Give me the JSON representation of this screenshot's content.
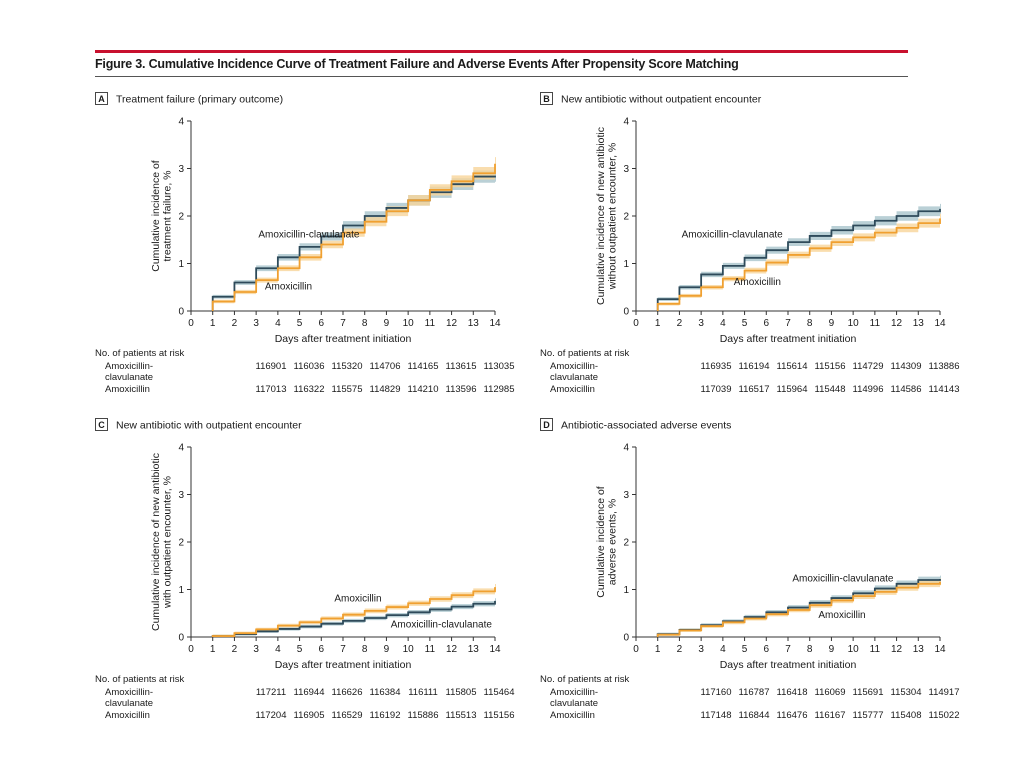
{
  "figure": {
    "title": "Figure 3. Cumulative Incidence Curve of Treatment Failure and Adverse Events After Propensity Score Matching",
    "colors": {
      "rule": "#c8102e",
      "amoxicillin": "#f0a030",
      "amoxicillin_clavulanate": "#2e4a5a",
      "amoxicillin_band": "#f8d59a",
      "amoxicillin_clavulanate_band": "#a9c4cc"
    }
  },
  "chart_data": [
    {
      "type": "line",
      "letter": "A",
      "title": "Treatment failure (primary outcome)",
      "xlabel": "Days after treatment initiation",
      "ylabel": [
        "Cumulative incidence of",
        "treatment failure, %"
      ],
      "xlim": [
        0,
        14
      ],
      "ylim": [
        0,
        4
      ],
      "xticks": [
        "0",
        "1",
        "2",
        "3",
        "4",
        "5",
        "6",
        "7",
        "8",
        "9",
        "10",
        "11",
        "12",
        "13",
        "14"
      ],
      "yticks": [
        "0",
        "1",
        "2",
        "3",
        "4"
      ],
      "x": [
        1,
        2,
        3,
        4,
        5,
        6,
        7,
        8,
        9,
        10,
        11,
        12,
        13,
        14
      ],
      "series": [
        {
          "name": "Amoxicillin-clavulanate",
          "values": [
            0.3,
            0.6,
            0.9,
            1.13,
            1.35,
            1.57,
            1.8,
            2.0,
            2.17,
            2.33,
            2.5,
            2.67,
            2.83,
            2.85
          ]
        },
        {
          "name": "Amoxicillin",
          "values": [
            0.2,
            0.4,
            0.65,
            0.9,
            1.13,
            1.4,
            1.65,
            1.88,
            2.1,
            2.33,
            2.55,
            2.73,
            2.9,
            3.1
          ]
        }
      ],
      "annotations": [
        {
          "text": "Amoxicillin-clavulanate",
          "x": 3.1,
          "y": 1.55
        },
        {
          "text": "Amoxicillin",
          "x": 3.4,
          "y": 0.45
        }
      ],
      "risk_table": {
        "heading": "No. of patients at risk",
        "rows": [
          {
            "label": [
              "Amoxicillin-",
              "clavulanate"
            ],
            "values": [
              "116901",
              "116036",
              "115320",
              "114706",
              "114165",
              "113615",
              "113035"
            ]
          },
          {
            "label": [
              "Amoxicillin"
            ],
            "values": [
              "117013",
              "116322",
              "115575",
              "114829",
              "114210",
              "113596",
              "112985"
            ]
          }
        ]
      }
    },
    {
      "type": "line",
      "letter": "B",
      "title": "New antibiotic without outpatient encounter",
      "xlabel": "Days after treatment initiation",
      "ylabel": [
        "Cumulative incidence of new antibiotic",
        "without outpatient encounter, %"
      ],
      "xlim": [
        0,
        14
      ],
      "ylim": [
        0,
        4
      ],
      "xticks": [
        "0",
        "1",
        "2",
        "3",
        "4",
        "5",
        "6",
        "7",
        "8",
        "9",
        "10",
        "11",
        "12",
        "13",
        "14"
      ],
      "yticks": [
        "0",
        "1",
        "2",
        "3",
        "4"
      ],
      "x": [
        1,
        2,
        3,
        4,
        5,
        6,
        7,
        8,
        9,
        10,
        11,
        12,
        13,
        14
      ],
      "series": [
        {
          "name": "Amoxicillin-clavulanate",
          "values": [
            0.25,
            0.5,
            0.77,
            0.95,
            1.12,
            1.28,
            1.45,
            1.58,
            1.7,
            1.8,
            1.9,
            2.0,
            2.1,
            2.15
          ]
        },
        {
          "name": "Amoxicillin",
          "values": [
            0.15,
            0.32,
            0.5,
            0.68,
            0.85,
            1.02,
            1.18,
            1.32,
            1.45,
            1.55,
            1.65,
            1.75,
            1.85,
            1.95
          ]
        }
      ],
      "annotations": [
        {
          "text": "Amoxicillin-clavulanate",
          "x": 2.1,
          "y": 1.55
        },
        {
          "text": "Amoxicillin",
          "x": 4.5,
          "y": 0.55
        }
      ],
      "risk_table": {
        "heading": "No. of patients at risk",
        "rows": [
          {
            "label": [
              "Amoxicillin-",
              "clavulanate"
            ],
            "values": [
              "116935",
              "116194",
              "115614",
              "115156",
              "114729",
              "114309",
              "113886"
            ]
          },
          {
            "label": [
              "Amoxicillin"
            ],
            "values": [
              "117039",
              "116517",
              "115964",
              "115448",
              "114996",
              "114586",
              "114143"
            ]
          }
        ]
      }
    },
    {
      "type": "line",
      "letter": "C",
      "title": "New antibiotic with outpatient encounter",
      "xlabel": "Days after treatment initiation",
      "ylabel": [
        "Cumulative incidence of new antibiotic",
        "with outpatient encounter, %"
      ],
      "xlim": [
        0,
        14
      ],
      "ylim": [
        0,
        4
      ],
      "xticks": [
        "0",
        "1",
        "2",
        "3",
        "4",
        "5",
        "6",
        "7",
        "8",
        "9",
        "10",
        "11",
        "12",
        "13",
        "14"
      ],
      "yticks": [
        "0",
        "1",
        "2",
        "3",
        "4"
      ],
      "x": [
        1,
        2,
        3,
        4,
        5,
        6,
        7,
        8,
        9,
        10,
        11,
        12,
        13,
        14
      ],
      "series": [
        {
          "name": "Amoxicillin-clavulanate",
          "values": [
            0.02,
            0.06,
            0.12,
            0.17,
            0.22,
            0.28,
            0.34,
            0.4,
            0.46,
            0.52,
            0.58,
            0.64,
            0.7,
            0.76
          ]
        },
        {
          "name": "Amoxicillin",
          "values": [
            0.02,
            0.08,
            0.16,
            0.24,
            0.31,
            0.39,
            0.47,
            0.55,
            0.63,
            0.71,
            0.8,
            0.88,
            0.96,
            1.05
          ]
        }
      ],
      "annotations": [
        {
          "text": "Amoxicillin",
          "x": 6.6,
          "y": 0.75
        },
        {
          "text": "Amoxicillin-clavulanate",
          "x": 9.2,
          "y": 0.2
        }
      ],
      "risk_table": {
        "heading": "No. of patients at risk",
        "rows": [
          {
            "label": [
              "Amoxicillin-",
              "clavulanate"
            ],
            "values": [
              "117211",
              "116944",
              "116626",
              "116384",
              "116111",
              "115805",
              "115464"
            ]
          },
          {
            "label": [
              "Amoxicillin"
            ],
            "values": [
              "117204",
              "116905",
              "116529",
              "116192",
              "115886",
              "115513",
              "115156"
            ]
          }
        ]
      }
    },
    {
      "type": "line",
      "letter": "D",
      "title": "Antibiotic-associated adverse events",
      "xlabel": "Days after treatment initiation",
      "ylabel": [
        "Cumulative incidence of",
        "adverse events, %"
      ],
      "xlim": [
        0,
        14
      ],
      "ylim": [
        0,
        4
      ],
      "xticks": [
        "0",
        "1",
        "2",
        "3",
        "4",
        "5",
        "6",
        "7",
        "8",
        "9",
        "10",
        "11",
        "12",
        "13",
        "14"
      ],
      "yticks": [
        "0",
        "1",
        "2",
        "3",
        "4"
      ],
      "x": [
        1,
        2,
        3,
        4,
        5,
        6,
        7,
        8,
        9,
        10,
        11,
        12,
        13,
        14
      ],
      "series": [
        {
          "name": "Amoxicillin-clavulanate",
          "values": [
            0.06,
            0.15,
            0.25,
            0.33,
            0.42,
            0.52,
            0.62,
            0.72,
            0.82,
            0.92,
            1.02,
            1.12,
            1.2,
            1.22
          ]
        },
        {
          "name": "Amoxicillin",
          "values": [
            0.05,
            0.14,
            0.23,
            0.31,
            0.39,
            0.48,
            0.57,
            0.67,
            0.77,
            0.86,
            0.95,
            1.04,
            1.12,
            1.16
          ]
        }
      ],
      "annotations": [
        {
          "text": "Amoxicillin-clavulanate",
          "x": 7.2,
          "y": 1.17
        },
        {
          "text": "Amoxicillin",
          "x": 8.4,
          "y": 0.4
        }
      ],
      "risk_table": {
        "heading": "No. of patients at risk",
        "rows": [
          {
            "label": [
              "Amoxicillin-",
              "clavulanate"
            ],
            "values": [
              "117160",
              "116787",
              "116418",
              "116069",
              "115691",
              "115304",
              "114917"
            ]
          },
          {
            "label": [
              "Amoxicillin"
            ],
            "values": [
              "117148",
              "116844",
              "116476",
              "116167",
              "115777",
              "115408",
              "115022"
            ]
          }
        ]
      }
    }
  ]
}
